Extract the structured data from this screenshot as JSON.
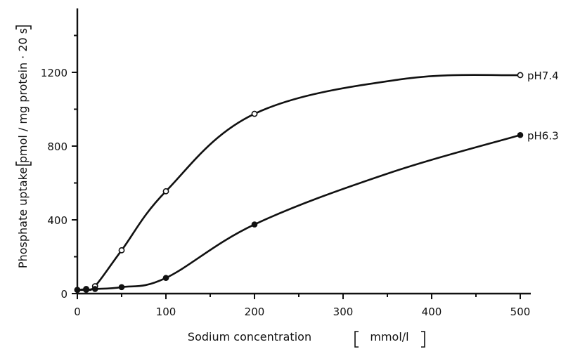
{
  "chart_data": {
    "type": "line",
    "xlabel": "Sodium concentration",
    "xlabel_unit": "mmol/l",
    "ylabel": "Phosphate uptake",
    "ylabel_unit": "pmol / mg protein · 20 s",
    "xlim": [
      0,
      520
    ],
    "ylim": [
      0,
      1500
    ],
    "x_ticks": [
      0,
      100,
      200,
      300,
      400,
      500
    ],
    "y_ticks": [
      0,
      400,
      800,
      1200
    ],
    "x_tick_labels": [
      "0",
      "100",
      "200",
      "300",
      "400",
      "500"
    ],
    "y_tick_labels": [
      "0",
      "400",
      "800",
      "1200"
    ],
    "grid": false,
    "legend": "none",
    "series": [
      {
        "name": "pH7.4",
        "marker": "open-circle",
        "color": "#111111",
        "points": [
          {
            "x": 0,
            "y": 20
          },
          {
            "x": 10,
            "y": 25
          },
          {
            "x": 20,
            "y": 40
          },
          {
            "x": 50,
            "y": 235
          },
          {
            "x": 100,
            "y": 555
          },
          {
            "x": 200,
            "y": 975
          },
          {
            "x": 500,
            "y": 1185
          }
        ]
      },
      {
        "name": "pH6.3",
        "marker": "filled-circle",
        "color": "#111111",
        "points": [
          {
            "x": 0,
            "y": 20
          },
          {
            "x": 10,
            "y": 20
          },
          {
            "x": 20,
            "y": 25
          },
          {
            "x": 50,
            "y": 35
          },
          {
            "x": 100,
            "y": 85
          },
          {
            "x": 200,
            "y": 375
          },
          {
            "x": 500,
            "y": 860
          }
        ]
      }
    ]
  }
}
